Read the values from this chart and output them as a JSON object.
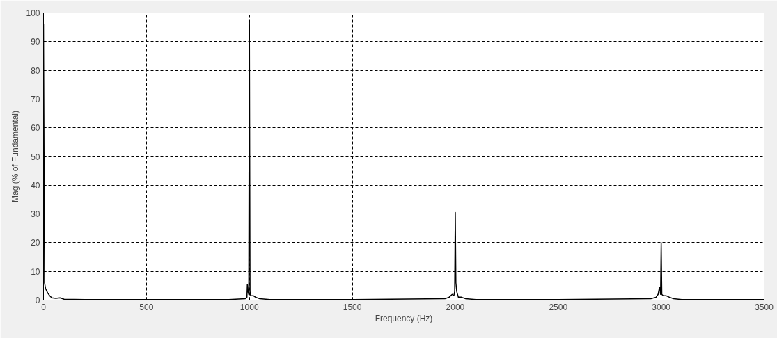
{
  "chart_data": {
    "type": "line",
    "xlabel": "Frequency (Hz)",
    "ylabel": "Mag (% of Fundamental)",
    "xlim": [
      0,
      3500
    ],
    "xticks": [
      0,
      500,
      1000,
      1500,
      2000,
      2500,
      3000,
      3500
    ],
    "ylim": [
      0,
      100
    ],
    "yticks": [
      0,
      10,
      20,
      30,
      40,
      50,
      60,
      70,
      80,
      90,
      100
    ],
    "grid": true,
    "line_style": "solid",
    "series": [
      {
        "color": "#000000",
        "x": [
          0,
          5,
          10,
          20,
          30,
          40,
          60,
          80,
          100,
          200,
          500,
          900,
          980,
          988,
          990,
          993,
          997,
          1000,
          1003,
          1006,
          1010,
          1020,
          1030,
          1050,
          1100,
          1500,
          1950,
          1970,
          1985,
          1993,
          1997,
          2000,
          2003,
          2007,
          2015,
          2030,
          2050,
          2100,
          2500,
          2950,
          2975,
          2985,
          2992,
          2997,
          3000,
          3003,
          3010,
          3025,
          3040,
          3060,
          3100,
          3500
        ],
        "values": [
          96,
          6,
          4,
          2.5,
          1.5,
          0.8,
          0.6,
          0.8,
          0.3,
          0.2,
          0.2,
          0.2,
          0.5,
          1,
          5.5,
          3,
          2,
          97,
          3,
          1.5,
          1.5,
          1.5,
          1,
          0.5,
          0.2,
          0.2,
          0.5,
          1,
          2,
          1.5,
          3,
          30.5,
          6,
          3,
          1,
          1,
          0.5,
          0.2,
          0.2,
          0.5,
          1,
          2,
          4.5,
          2,
          20,
          2,
          1.5,
          1.5,
          1,
          0.5,
          0.2,
          0.2
        ]
      }
    ]
  }
}
